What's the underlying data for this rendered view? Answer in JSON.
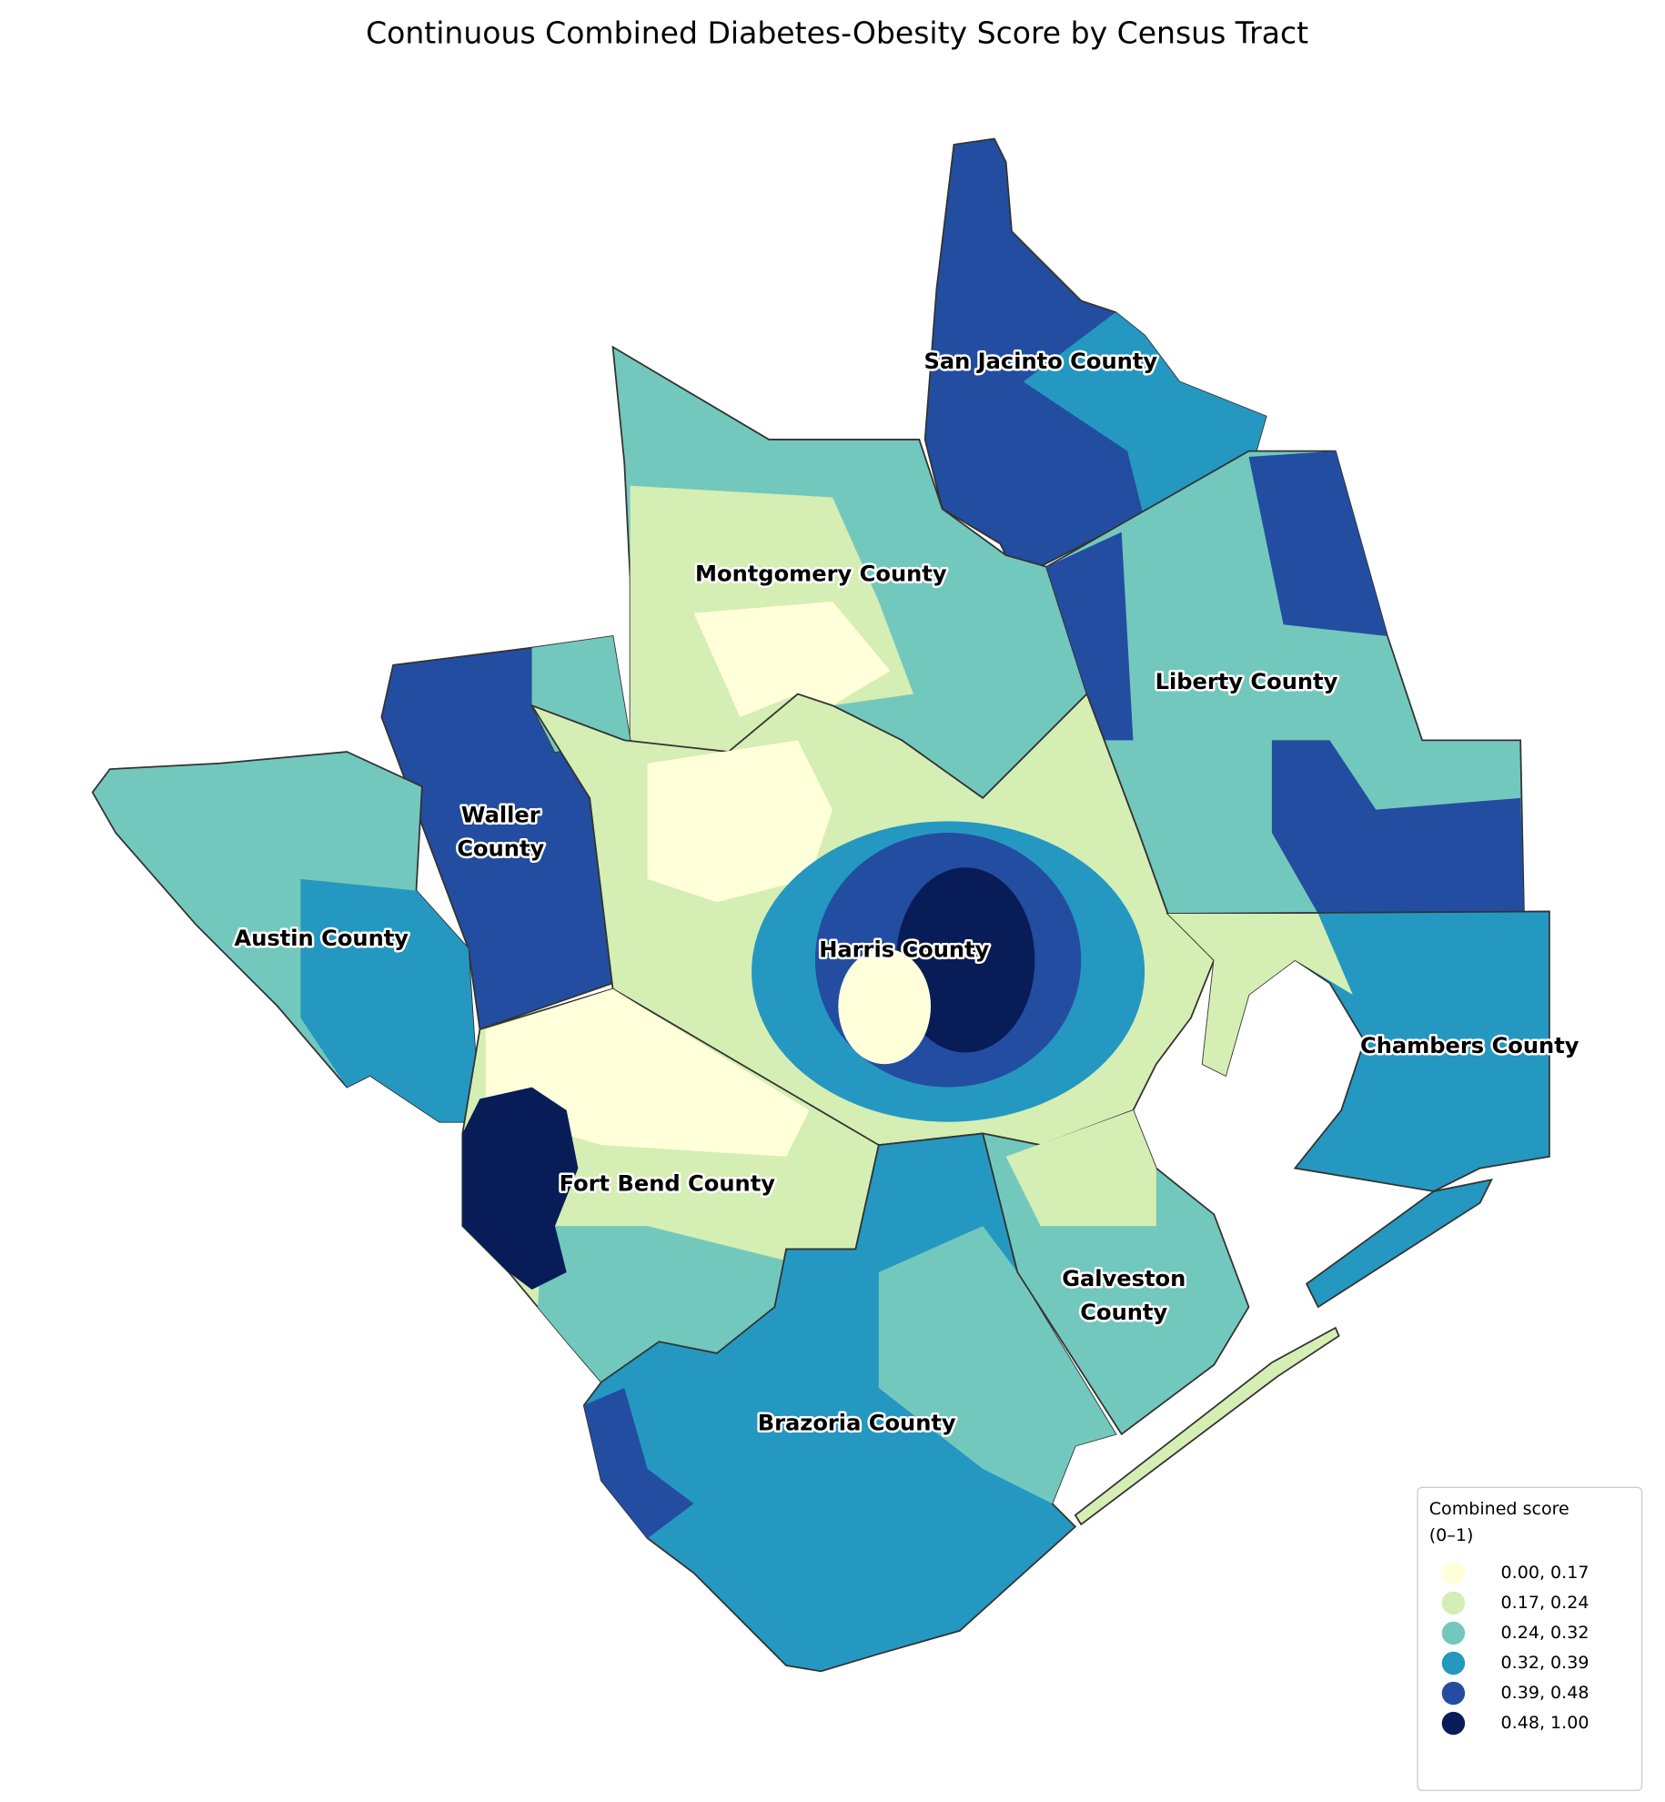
{
  "title": "Continuous Combined Diabetes-Obesity Score by Census Tract",
  "labels": [
    {
      "lines": [
        "San Jacinto County"
      ]
    },
    {
      "lines": [
        "Montgomery County"
      ]
    },
    {
      "lines": [
        "Liberty County"
      ]
    },
    {
      "lines": [
        "Waller",
        "County"
      ]
    },
    {
      "lines": [
        "Austin County"
      ]
    },
    {
      "lines": [
        "Harris County"
      ]
    },
    {
      "lines": [
        "Chambers County"
      ]
    },
    {
      "lines": [
        "Fort Bend County"
      ]
    },
    {
      "lines": [
        "Galveston",
        "County"
      ]
    },
    {
      "lines": [
        "Brazoria County"
      ]
    }
  ],
  "legend": {
    "title": [
      "Combined score",
      "(0–1)"
    ],
    "items": [
      {
        "label": "0.00, 0.17",
        "color": "#ffffd9"
      },
      {
        "label": "0.17, 0.24",
        "color": "#d5eeb3"
      },
      {
        "label": "0.24, 0.32",
        "color": "#73c8bd"
      },
      {
        "label": "0.32, 0.39",
        "color": "#2498c1"
      },
      {
        "label": "0.39, 0.48",
        "color": "#234da0"
      },
      {
        "label": "0.48, 1.00",
        "color": "#081d58"
      }
    ]
  }
}
